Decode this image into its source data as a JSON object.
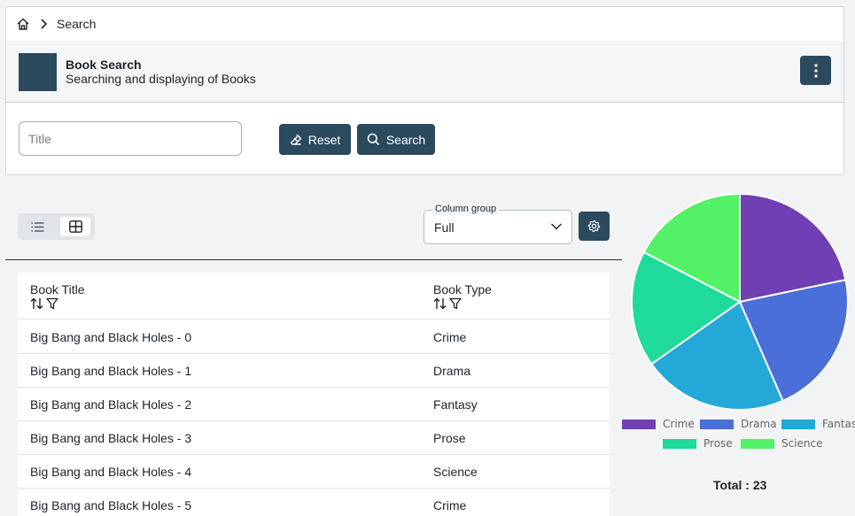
{
  "breadcrumb": {
    "home_icon": "home-icon",
    "separator_icon": "chevron-right-icon",
    "current": "Search"
  },
  "header": {
    "title": "Book Search",
    "subtitle": "Searching and displaying of Books",
    "menu_icon": "kebab-menu-icon"
  },
  "search": {
    "title_placeholder": "Title",
    "title_value": "",
    "reset_label": "Reset",
    "search_label": "Search"
  },
  "toolbar": {
    "list_icon": "list-view-icon",
    "grid_icon": "grid-view-icon",
    "column_group_label": "Column group",
    "column_group_value": "Full",
    "settings_icon": "gear-icon"
  },
  "table": {
    "columns": [
      "Book Title",
      "Book Type"
    ],
    "rows": [
      {
        "title": "Big Bang and Black Holes - 0",
        "type": "Crime"
      },
      {
        "title": "Big Bang and Black Holes - 1",
        "type": "Drama"
      },
      {
        "title": "Big Bang and Black Holes - 2",
        "type": "Fantasy"
      },
      {
        "title": "Big Bang and Black Holes - 3",
        "type": "Prose"
      },
      {
        "title": "Big Bang and Black Holes - 4",
        "type": "Science"
      },
      {
        "title": "Big Bang and Black Holes - 5",
        "type": "Crime"
      }
    ]
  },
  "colors": {
    "primary": "#2b4a5e"
  },
  "chart_data": {
    "type": "pie",
    "categories": [
      "Crime",
      "Drama",
      "Fantasy",
      "Prose",
      "Science"
    ],
    "values": [
      5,
      5,
      5,
      4,
      4
    ],
    "colors": [
      "#6f3fb3",
      "#4a6fd8",
      "#24a8d8",
      "#1fdb9b",
      "#53f266"
    ],
    "legend": "bottom",
    "total_label": "Total : 23"
  }
}
